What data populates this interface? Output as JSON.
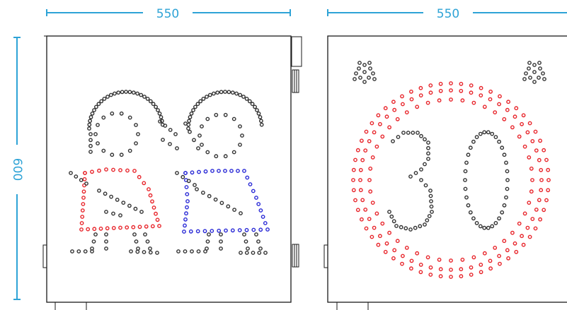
{
  "dimensions": {
    "width_left": "550",
    "width_right": "550",
    "height": "600",
    "color": "#2ea3d6"
  },
  "panels": [
    {
      "name": "children-crossing-sign",
      "figures": [
        {
          "name": "girl",
          "head_color": "#333333",
          "dress_color": "#e8262c"
        },
        {
          "name": "boy",
          "head_color": "#333333",
          "shirt_color": "#2a2ad6"
        }
      ]
    },
    {
      "name": "speed-limit-sign",
      "speed_value": "30",
      "ring_color": "#e8262c",
      "digit_color": "#333333"
    }
  ],
  "colors": {
    "outline": "#1a1a1a",
    "led_red": "#e8262c",
    "led_blue": "#2a2ad6",
    "led_dark": "#333333"
  }
}
